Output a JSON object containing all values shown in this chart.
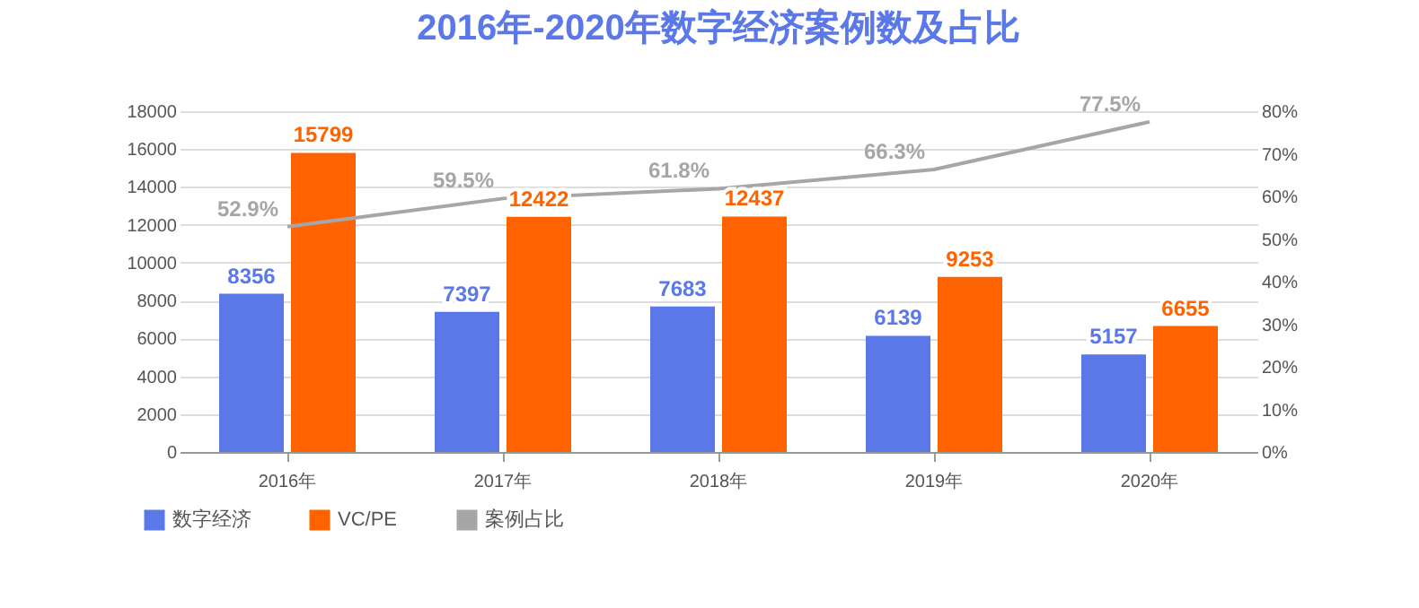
{
  "chart_data": {
    "type": "bar",
    "title": "2016年-2020年数字经济案例数及占比",
    "categories": [
      "2016年",
      "2017年",
      "2018年",
      "2019年",
      "2020年"
    ],
    "series": [
      {
        "name": "数字经济",
        "color": "#5b78e8",
        "values": [
          8356,
          7397,
          7683,
          6139,
          5157
        ],
        "value_labels": [
          "8356",
          "7397",
          "7683",
          "6139",
          "5157"
        ]
      },
      {
        "name": "VC/PE",
        "color": "#ff6300",
        "values": [
          15799,
          12422,
          12437,
          9253,
          6655
        ],
        "value_labels": [
          "15799",
          "12422",
          "12437",
          "9253",
          "6655"
        ]
      },
      {
        "name": "案例占比",
        "type": "line",
        "axis": "y2",
        "color": "#a6a6a6",
        "values": [
          52.9,
          59.5,
          61.8,
          66.3,
          77.5
        ],
        "value_labels": [
          "52.9%",
          "59.5%",
          "61.8%",
          "66.3%",
          "77.5%"
        ]
      }
    ],
    "ylim": [
      0,
      18000
    ],
    "yticks": [
      0,
      2000,
      4000,
      6000,
      8000,
      10000,
      12000,
      14000,
      16000,
      18000
    ],
    "y2lim": [
      0,
      80
    ],
    "y2ticks": [
      {
        "value": 0,
        "label": "0%"
      },
      {
        "value": 10,
        "label": "10%"
      },
      {
        "value": 20,
        "label": "20%"
      },
      {
        "value": 30,
        "label": "30%"
      },
      {
        "value": 40,
        "label": "40%"
      },
      {
        "value": 50,
        "label": "50%"
      },
      {
        "value": 60,
        "label": "60%"
      },
      {
        "value": 70,
        "label": "70%"
      },
      {
        "value": 80,
        "label": "80%"
      }
    ],
    "grid": "y",
    "legend": "bottom left"
  }
}
